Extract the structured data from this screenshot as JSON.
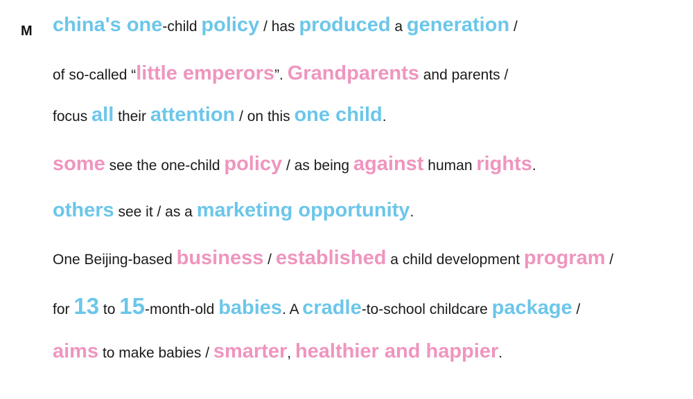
{
  "speaker": "M",
  "colors": {
    "blue": "#6cc6ea",
    "pink": "#ef95bf",
    "text": "#1a1a1a"
  },
  "lines": [
    [
      {
        "t": "china's one",
        "c": "blue"
      },
      {
        "t": "-child ",
        "c": "norm"
      },
      {
        "t": "policy",
        "c": "blue"
      },
      {
        "t": " / has ",
        "c": "norm"
      },
      {
        "t": "produced",
        "c": "blue"
      },
      {
        "t": " a ",
        "c": "norm"
      },
      {
        "t": "generation",
        "c": "blue"
      },
      {
        "t": " /",
        "c": "norm"
      }
    ],
    [
      {
        "t": "of so-called “",
        "c": "norm"
      },
      {
        "t": "little emperors",
        "c": "pink"
      },
      {
        "t": "”. ",
        "c": "norm"
      },
      {
        "t": "Grandparents",
        "c": "pink"
      },
      {
        "t": " and parents /",
        "c": "norm"
      }
    ],
    [
      {
        "t": "focus ",
        "c": "norm"
      },
      {
        "t": "all",
        "c": "blue"
      },
      {
        "t": " their ",
        "c": "norm"
      },
      {
        "t": "attention",
        "c": "blue"
      },
      {
        "t": " / on this ",
        "c": "norm"
      },
      {
        "t": "one child",
        "c": "blue"
      },
      {
        "t": ".",
        "c": "norm"
      }
    ],
    [
      {
        "t": "some",
        "c": "pink"
      },
      {
        "t": " see the one-child ",
        "c": "norm"
      },
      {
        "t": "policy",
        "c": "pink"
      },
      {
        "t": " / as being ",
        "c": "norm"
      },
      {
        "t": "against",
        "c": "pink"
      },
      {
        "t": " human ",
        "c": "norm"
      },
      {
        "t": "rights",
        "c": "pink"
      },
      {
        "t": ".",
        "c": "norm"
      }
    ],
    [
      {
        "t": "others",
        "c": "blue"
      },
      {
        "t": " see it / as a ",
        "c": "norm"
      },
      {
        "t": "marketing opportunity",
        "c": "blue"
      },
      {
        "t": ".",
        "c": "norm"
      }
    ],
    [
      {
        "t": "One Beijing-based ",
        "c": "norm"
      },
      {
        "t": "business",
        "c": "pink"
      },
      {
        "t": " / ",
        "c": "norm"
      },
      {
        "t": "established",
        "c": "pink"
      },
      {
        "t": " a child development ",
        "c": "norm"
      },
      {
        "t": "program",
        "c": "pink"
      },
      {
        "t": " /",
        "c": "norm"
      }
    ],
    [
      {
        "t": "for ",
        "c": "norm"
      },
      {
        "t": "13",
        "c": "blue big"
      },
      {
        "t": " to ",
        "c": "norm"
      },
      {
        "t": "15",
        "c": "blue big"
      },
      {
        "t": "-month-old ",
        "c": "norm"
      },
      {
        "t": "babies",
        "c": "blue"
      },
      {
        "t": ". A ",
        "c": "norm"
      },
      {
        "t": "cradle",
        "c": "blue"
      },
      {
        "t": "-to-school childcare ",
        "c": "norm"
      },
      {
        "t": "package",
        "c": "blue"
      },
      {
        "t": " /",
        "c": "norm"
      }
    ],
    [
      {
        "t": "aims",
        "c": "pink"
      },
      {
        "t": " to make babies / ",
        "c": "norm"
      },
      {
        "t": "smarter",
        "c": "pink"
      },
      {
        "t": ", ",
        "c": "norm"
      },
      {
        "t": "healthier and happier",
        "c": "pink"
      },
      {
        "t": ".",
        "c": "norm"
      }
    ]
  ]
}
